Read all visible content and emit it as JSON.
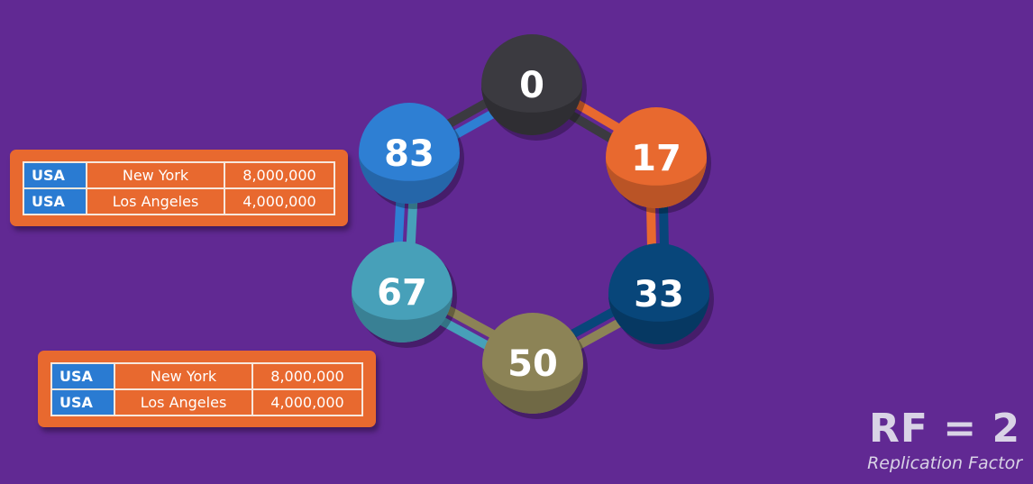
{
  "ring": {
    "nodes": [
      {
        "token": "0",
        "color": "#3b3a40"
      },
      {
        "token": "17",
        "color": "#e8692f"
      },
      {
        "token": "33",
        "color": "#08467a"
      },
      {
        "token": "50",
        "color": "#8c8356"
      },
      {
        "token": "67",
        "color": "#47a0b9"
      },
      {
        "token": "83",
        "color": "#2e7fd3"
      }
    ]
  },
  "tables": [
    {
      "rows": [
        {
          "country": "USA",
          "city": "New York",
          "population": "8,000,000"
        },
        {
          "country": "USA",
          "city": "Los Angeles",
          "population": "4,000,000"
        }
      ]
    },
    {
      "rows": [
        {
          "country": "USA",
          "city": "New York",
          "population": "8,000,000"
        },
        {
          "country": "USA",
          "city": "Los Angeles",
          "population": "4,000,000"
        }
      ]
    }
  ],
  "legend": {
    "title": "RF = 2",
    "subtitle": "Replication Factor"
  }
}
